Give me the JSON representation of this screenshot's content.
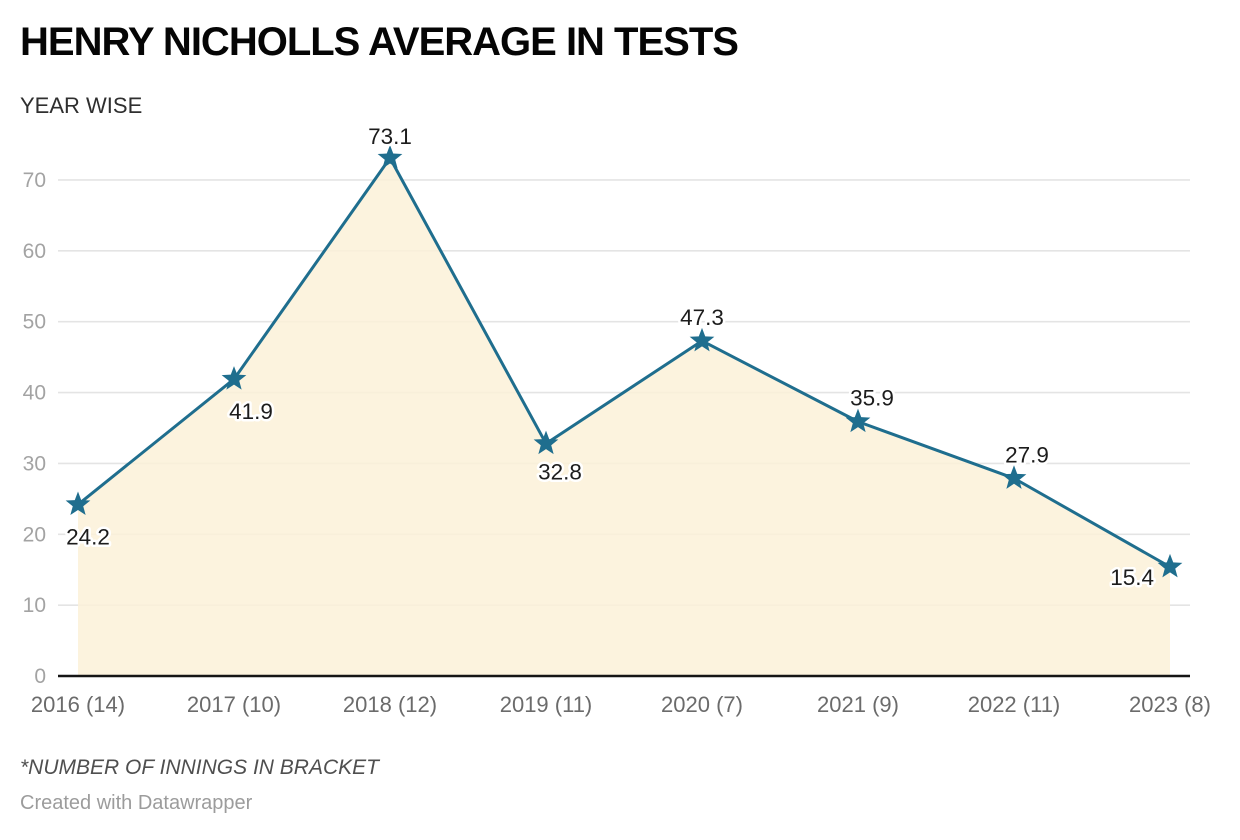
{
  "header": {
    "title": "HENRY NICHOLLS AVERAGE IN TESTS",
    "subtitle": "YEAR WISE"
  },
  "footer": {
    "footnote": "*NUMBER OF INNINGS IN BRACKET",
    "credit": "Created with Datawrapper"
  },
  "colors": {
    "line": "#1f6e8e",
    "marker": "#1f6e8e",
    "area_fill": "#fbf1d8",
    "gridline": "#e4e4e4",
    "axis_baseline": "#151515",
    "y_tick_label": "#a3a3a3",
    "x_tick_label": "#6b6b6b",
    "value_label": "#1c1c1c",
    "value_label_halo": "#ffffff"
  },
  "chart_data": {
    "type": "area",
    "title": "HENRY NICHOLLS AVERAGE IN TESTS",
    "subtitle": "YEAR WISE",
    "categories": [
      "2016 (14)",
      "2017 (10)",
      "2018 (12)",
      "2019 (11)",
      "2020 (7)",
      "2021 (9)",
      "2022 (11)",
      "2023 (8)"
    ],
    "values": [
      24.2,
      41.9,
      73.1,
      32.8,
      47.3,
      35.9,
      27.9,
      15.4
    ],
    "value_labels": [
      "24.2",
      "41.9",
      "73.1",
      "32.8",
      "47.3",
      "35.9",
      "27.9",
      "15.4"
    ],
    "innings_per_year": [
      14,
      10,
      12,
      11,
      7,
      9,
      11,
      8
    ],
    "xlabel": "",
    "ylabel": "",
    "ylim": [
      0,
      75
    ],
    "yticks": [
      0,
      10,
      20,
      30,
      40,
      50,
      60,
      70
    ],
    "grid": "horizontal",
    "legend": "none",
    "marker": "star",
    "footnote": "*NUMBER OF INNINGS IN BRACKET",
    "credit": "Created with Datawrapper"
  }
}
